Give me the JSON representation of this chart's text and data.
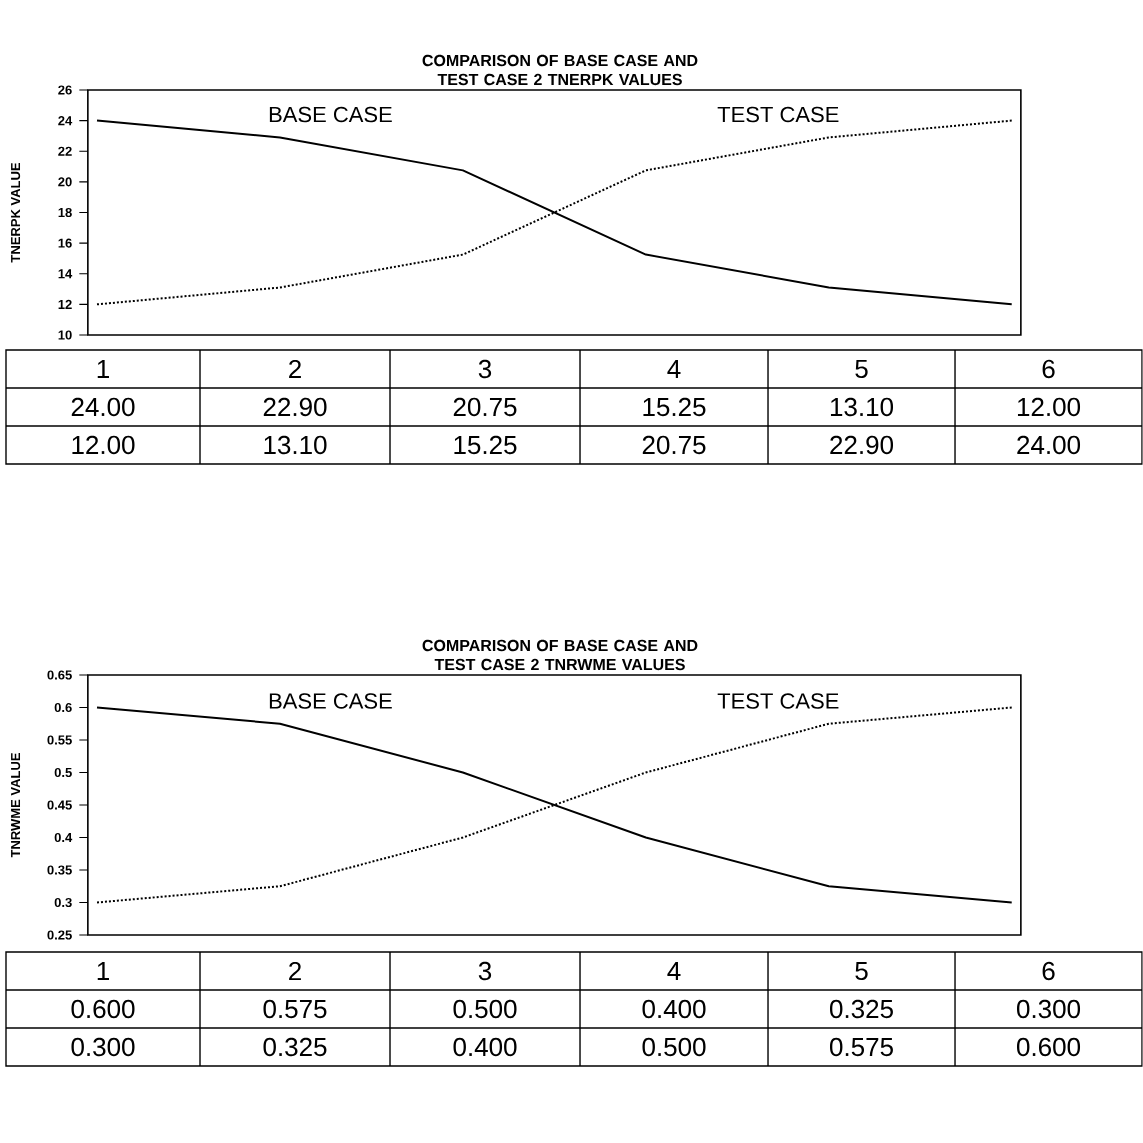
{
  "chart_data": [
    {
      "type": "line",
      "title": "COMPARISON OF BASE CASE AND TEST CASE 2 TNERPK VALUES",
      "ylabel": "TNERPK VALUE",
      "categories": [
        "1",
        "2",
        "3",
        "4",
        "5",
        "6"
      ],
      "ylim": [
        10,
        26
      ],
      "yticks": [
        10,
        12,
        14,
        16,
        18,
        20,
        22,
        24,
        26
      ],
      "grid": false,
      "legend": false,
      "series": [
        {
          "name": "BASE CASE",
          "color": "#000000",
          "line_style": "solid",
          "values": [
            24.0,
            22.9,
            20.75,
            15.25,
            13.1,
            12.0
          ],
          "value_labels": [
            "24.00",
            "22.90",
            "20.75",
            "15.25",
            "13.10",
            "12.00"
          ]
        },
        {
          "name": "TEST CASE",
          "color": "#000000",
          "line_style": "dotted",
          "values": [
            12.0,
            13.1,
            15.25,
            20.75,
            22.9,
            24.0
          ],
          "value_labels": [
            "12.00",
            "13.10",
            "15.25",
            "20.75",
            "22.90",
            "24.00"
          ]
        }
      ]
    },
    {
      "type": "line",
      "title": "COMPARISON OF BASE CASE AND TEST CASE 2 TNRWME VALUES",
      "ylabel": "TNRWME VALUE",
      "categories": [
        "1",
        "2",
        "3",
        "4",
        "5",
        "6"
      ],
      "ylim": [
        0.25,
        0.65
      ],
      "yticks": [
        0.25,
        0.3,
        0.35,
        0.4,
        0.45,
        0.5,
        0.55,
        0.6,
        0.65
      ],
      "grid": false,
      "legend": false,
      "series": [
        {
          "name": "BASE CASE",
          "color": "#000000",
          "line_style": "solid",
          "values": [
            0.6,
            0.575,
            0.5,
            0.4,
            0.325,
            0.3
          ],
          "value_labels": [
            "0.600",
            "0.575",
            "0.500",
            "0.400",
            "0.325",
            "0.300"
          ]
        },
        {
          "name": "TEST CASE",
          "color": "#000000",
          "line_style": "dotted",
          "values": [
            0.3,
            0.325,
            0.4,
            0.5,
            0.575,
            0.6
          ],
          "value_labels": [
            "0.300",
            "0.325",
            "0.400",
            "0.500",
            "0.575",
            "0.600"
          ]
        }
      ]
    }
  ]
}
